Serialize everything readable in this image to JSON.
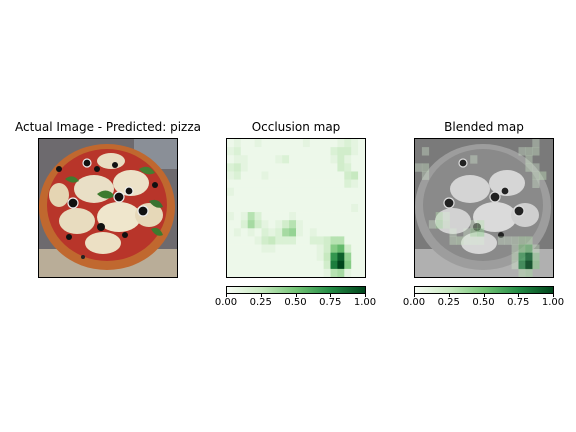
{
  "panels": {
    "actual": {
      "title": "Actual Image - Predicted: pizza"
    },
    "occlusion": {
      "title": "Occlusion map"
    },
    "blended": {
      "title": "Blended map"
    }
  },
  "colorbar": {
    "colormap": "Greens",
    "ticks": [
      "0.00",
      "0.25",
      "0.50",
      "0.75",
      "1.00"
    ],
    "range": [
      0,
      1
    ]
  },
  "chart_data": {
    "type": "heatmap",
    "title": "Occlusion map",
    "grid": [
      [
        0.05,
        0.1,
        0.05,
        0.05,
        0.1,
        0.05,
        0.05,
        0.05,
        0.05,
        0.05,
        0.05,
        0.1,
        0.05,
        0.05,
        0.05,
        0.05,
        0.1,
        0.15,
        0.1,
        0.05
      ],
      [
        0.1,
        0.15,
        0.05,
        0.05,
        0.05,
        0.05,
        0.05,
        0.05,
        0.05,
        0.05,
        0.05,
        0.05,
        0.05,
        0.05,
        0.05,
        0.15,
        0.2,
        0.2,
        0.1,
        0.05
      ],
      [
        0.05,
        0.1,
        0.1,
        0.05,
        0.05,
        0.05,
        0.05,
        0.1,
        0.15,
        0.05,
        0.05,
        0.05,
        0.05,
        0.05,
        0.05,
        0.1,
        0.2,
        0.1,
        0.05,
        0.05
      ],
      [
        0.15,
        0.2,
        0.1,
        0.05,
        0.05,
        0.05,
        0.05,
        0.05,
        0.05,
        0.05,
        0.05,
        0.05,
        0.05,
        0.05,
        0.05,
        0.05,
        0.2,
        0.15,
        0.05,
        0.05
      ],
      [
        0.1,
        0.15,
        0.05,
        0.05,
        0.05,
        0.1,
        0.05,
        0.05,
        0.05,
        0.05,
        0.05,
        0.05,
        0.05,
        0.05,
        0.05,
        0.05,
        0.05,
        0.2,
        0.25,
        0.05
      ],
      [
        0.05,
        0.05,
        0.05,
        0.05,
        0.05,
        0.05,
        0.05,
        0.05,
        0.05,
        0.05,
        0.05,
        0.05,
        0.05,
        0.05,
        0.05,
        0.05,
        0.05,
        0.15,
        0.1,
        0.05
      ],
      [
        0.1,
        0.05,
        0.05,
        0.05,
        0.05,
        0.05,
        0.05,
        0.05,
        0.05,
        0.05,
        0.05,
        0.05,
        0.05,
        0.05,
        0.05,
        0.05,
        0.05,
        0.05,
        0.05,
        0.05
      ],
      [
        0.05,
        0.05,
        0.05,
        0.05,
        0.05,
        0.05,
        0.05,
        0.05,
        0.05,
        0.05,
        0.05,
        0.05,
        0.05,
        0.05,
        0.05,
        0.05,
        0.05,
        0.05,
        0.05,
        0.05
      ],
      [
        0.05,
        0.05,
        0.05,
        0.05,
        0.05,
        0.05,
        0.05,
        0.05,
        0.05,
        0.05,
        0.05,
        0.05,
        0.05,
        0.05,
        0.05,
        0.05,
        0.05,
        0.05,
        0.1,
        0.05
      ],
      [
        0.1,
        0.05,
        0.1,
        0.3,
        0.15,
        0.05,
        0.05,
        0.05,
        0.05,
        0.1,
        0.05,
        0.05,
        0.05,
        0.05,
        0.05,
        0.05,
        0.05,
        0.05,
        0.05,
        0.05
      ],
      [
        0.05,
        0.05,
        0.15,
        0.35,
        0.2,
        0.1,
        0.05,
        0.1,
        0.2,
        0.3,
        0.1,
        0.05,
        0.05,
        0.05,
        0.05,
        0.05,
        0.05,
        0.05,
        0.05,
        0.05
      ],
      [
        0.05,
        0.1,
        0.05,
        0.1,
        0.05,
        0.15,
        0.1,
        0.15,
        0.35,
        0.4,
        0.1,
        0.05,
        0.1,
        0.05,
        0.05,
        0.05,
        0.05,
        0.05,
        0.05,
        0.05
      ],
      [
        0.05,
        0.05,
        0.05,
        0.05,
        0.1,
        0.2,
        0.25,
        0.15,
        0.15,
        0.15,
        0.05,
        0.05,
        0.15,
        0.15,
        0.2,
        0.3,
        0.3,
        0.05,
        0.05,
        0.05
      ],
      [
        0.05,
        0.05,
        0.05,
        0.05,
        0.05,
        0.1,
        0.1,
        0.05,
        0.05,
        0.05,
        0.05,
        0.05,
        0.05,
        0.1,
        0.2,
        0.45,
        0.55,
        0.2,
        0.05,
        0.05
      ],
      [
        0.05,
        0.05,
        0.05,
        0.05,
        0.05,
        0.05,
        0.05,
        0.05,
        0.05,
        0.05,
        0.05,
        0.05,
        0.05,
        0.1,
        0.25,
        0.7,
        0.9,
        0.4,
        0.05,
        0.05
      ],
      [
        0.05,
        0.05,
        0.05,
        0.05,
        0.05,
        0.05,
        0.05,
        0.05,
        0.05,
        0.05,
        0.05,
        0.05,
        0.05,
        0.05,
        0.2,
        0.8,
        1.0,
        0.45,
        0.05,
        0.05
      ],
      [
        0.05,
        0.05,
        0.05,
        0.05,
        0.05,
        0.05,
        0.05,
        0.05,
        0.05,
        0.05,
        0.05,
        0.05,
        0.05,
        0.05,
        0.1,
        0.3,
        0.35,
        0.1,
        0.05,
        0.05
      ]
    ],
    "vmin": 0,
    "vmax": 1,
    "colormap": "Greens"
  }
}
